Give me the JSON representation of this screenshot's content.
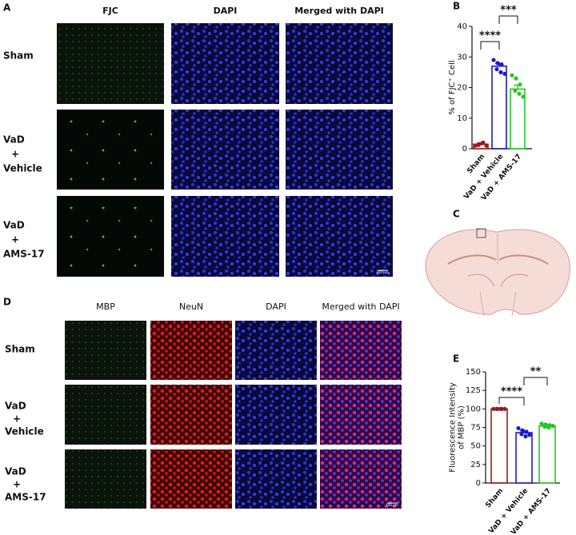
{
  "panels": {
    "A": {
      "label": "A",
      "headers": [
        "FJC",
        "DAPI",
        "Merged with DAPI"
      ],
      "rows": [
        [
          "Sham"
        ],
        [
          "VaD",
          "+",
          "Vehicle"
        ],
        [
          "VaD",
          "+",
          "AMS-17"
        ]
      ],
      "scale_bar": "100 µm"
    },
    "C": {
      "label": "C"
    },
    "D": {
      "label": "D",
      "headers": [
        "MBP",
        "NeuN",
        "DAPI",
        "Merged with DAPI"
      ],
      "rows": [
        [
          "Sham"
        ],
        [
          "VaD",
          "+",
          "Vehicle"
        ],
        [
          "VaD",
          "+",
          "AMS-17"
        ]
      ],
      "scale_bar": "100 µm"
    }
  },
  "chart_data": [
    {
      "type": "bar",
      "panel_label": "B",
      "ylabel": [
        "% of FJC⁺ Cell"
      ],
      "categories": [
        "Sham",
        "VaD + Vehicle",
        "VaD + AMS-17"
      ],
      "values": [
        1.5,
        27,
        19.5
      ],
      "errors": [
        0.3,
        1.0,
        1.3
      ],
      "points": [
        [
          1,
          1.5,
          2,
          1.2,
          1.8,
          1
        ],
        [
          29,
          28,
          27.5,
          26,
          25,
          24.5
        ],
        [
          24,
          23,
          21,
          19,
          18,
          17
        ]
      ],
      "colors": [
        "#a01818",
        "#1a1acc",
        "#22c922"
      ],
      "ylim": [
        0,
        40
      ],
      "yticks": [
        0,
        10,
        20,
        30,
        40
      ],
      "annotations": [
        "****",
        "***"
      ]
    },
    {
      "type": "bar",
      "panel_label": "E",
      "ylabel": [
        "Fluorescence Intensity",
        "of MBP (%)"
      ],
      "categories": [
        "Sham",
        "VaD + Vehicle",
        "VaD + AMS-17"
      ],
      "values": [
        100,
        68,
        77
      ],
      "errors": [
        0.5,
        3,
        1.5
      ],
      "points": [
        [
          100,
          100,
          100,
          100,
          100,
          100
        ],
        [
          74,
          71,
          69,
          66,
          63,
          65
        ],
        [
          80,
          79,
          78,
          76,
          75,
          77
        ]
      ],
      "colors": [
        "#a01818",
        "#1a1acc",
        "#22c922"
      ],
      "ylim": [
        0,
        150
      ],
      "yticks": [
        0,
        25,
        50,
        75,
        100,
        125,
        150
      ],
      "annotations": [
        "****",
        "**"
      ]
    }
  ]
}
